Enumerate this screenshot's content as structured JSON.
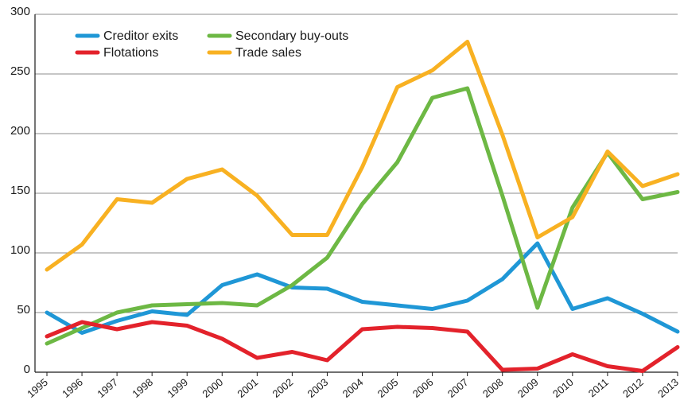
{
  "chart_data": {
    "type": "line",
    "title": "",
    "xlabel": "",
    "ylabel": "",
    "x": [
      "1995",
      "1996",
      "1997",
      "1998",
      "1999",
      "2000",
      "2001",
      "2002",
      "2003",
      "2004",
      "2005",
      "2006",
      "2007",
      "2008",
      "2009",
      "2010",
      "2011",
      "2012",
      "2013"
    ],
    "ylim": [
      0,
      300
    ],
    "yticks": [
      0,
      50,
      100,
      150,
      200,
      250,
      300
    ],
    "grid": true,
    "legend_position": "top-left",
    "series": [
      {
        "name": "Creditor exits",
        "color": "#1f97d6",
        "values": [
          50,
          33,
          43,
          51,
          48,
          73,
          82,
          71,
          70,
          59,
          56,
          53,
          60,
          78,
          108,
          53,
          62,
          49,
          34
        ]
      },
      {
        "name": "Secondary buy-outs",
        "color": "#6db844",
        "values": [
          24,
          37,
          50,
          56,
          57,
          58,
          56,
          73,
          96,
          141,
          176,
          230,
          238,
          148,
          54,
          138,
          184,
          145,
          151
        ]
      },
      {
        "name": "Flotations",
        "color": "#e3222b",
        "values": [
          30,
          42,
          36,
          42,
          39,
          28,
          12,
          17,
          10,
          36,
          38,
          37,
          34,
          2,
          3,
          15,
          5,
          1,
          21
        ]
      },
      {
        "name": "Trade sales",
        "color": "#f8b122",
        "values": [
          86,
          107,
          145,
          142,
          162,
          170,
          148,
          115,
          115,
          172,
          239,
          253,
          277,
          199,
          113,
          130,
          185,
          156,
          166
        ]
      }
    ]
  }
}
